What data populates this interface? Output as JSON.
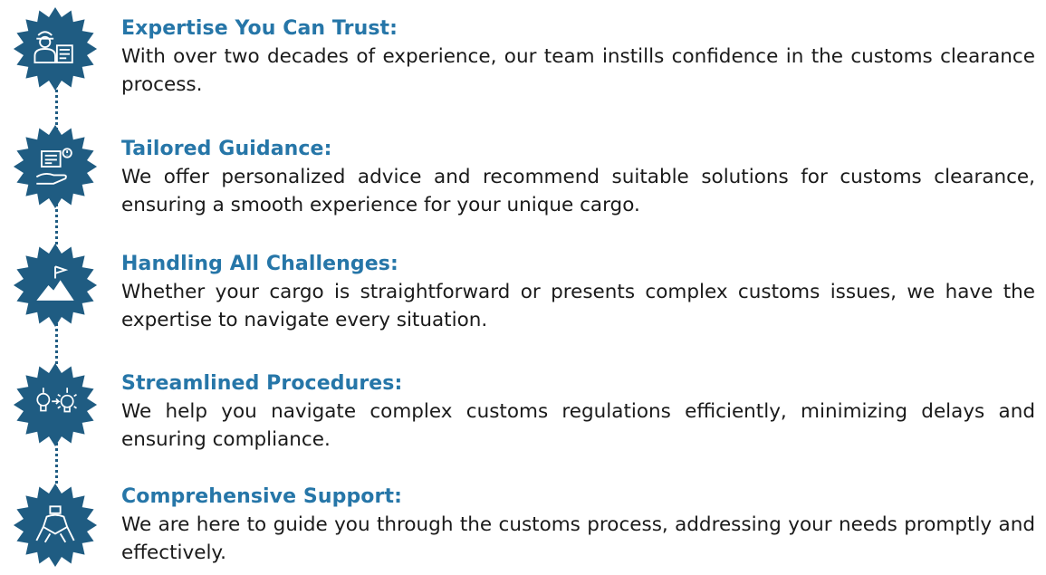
{
  "colors": {
    "badge": "#1f5c82",
    "title": "#2676a8",
    "text": "#1a1a1a"
  },
  "items": [
    {
      "icon": "customs-officer-icon",
      "title": "Expertise You Can Trust:",
      "body": "With over two decades of experience, our team instills confidence in the customs clearance process."
    },
    {
      "icon": "guidance-hand-icon",
      "title": "Tailored Guidance:",
      "body": "We offer personalized advice and recommend suitable solutions for customs clearance, ensuring a smooth experience for your unique cargo."
    },
    {
      "icon": "mountain-flag-icon",
      "title": "Handling All Challenges:",
      "body": "Whether your cargo is straightforward or presents complex customs issues, we have the expertise to navigate every situation."
    },
    {
      "icon": "idea-process-icon",
      "title": "Streamlined Procedures:",
      "body": "We help you navigate complex customs regulations efficiently, minimizing delays and ensuring compliance."
    },
    {
      "icon": "teamwork-hands-icon",
      "title": "Comprehensive Support:",
      "body": "We are here to guide you through the customs process, addressing your needs promptly and effectively."
    }
  ]
}
